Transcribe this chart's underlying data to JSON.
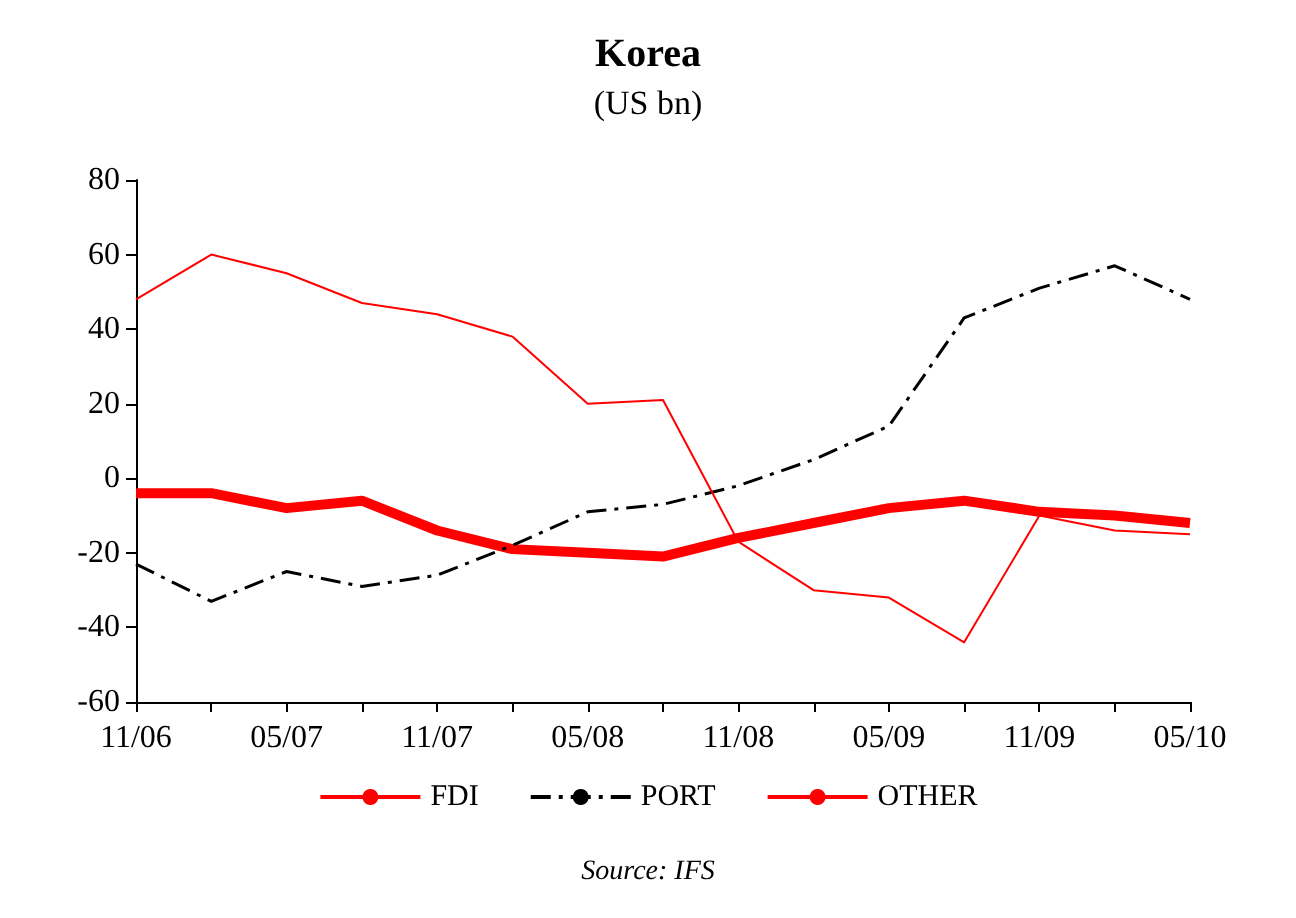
{
  "chart_data": {
    "type": "line",
    "title": "Korea",
    "subtitle": "(US bn)",
    "categories": [
      "11/06",
      null,
      "05/07",
      null,
      "11/07",
      null,
      "05/08",
      null,
      "11/08",
      null,
      "05/09",
      null,
      "11/09",
      null,
      "05/10"
    ],
    "series": [
      {
        "name": "FDI",
        "color": "#ff0000",
        "line_style": "solid",
        "values": [
          -4,
          -4,
          -8,
          -6,
          -14,
          -19,
          -20,
          -21,
          -16,
          -12,
          -8,
          -6,
          -9,
          -10,
          -12
        ]
      },
      {
        "name": "PORT",
        "color": "#000000",
        "line_style": "dashed",
        "values": [
          -23,
          -33,
          -25,
          -29,
          -26,
          -18,
          -9,
          -7,
          -2,
          5,
          14,
          43,
          51,
          57,
          48
        ]
      },
      {
        "name": "OTHER",
        "color": "#ff0000",
        "line_style": "solid",
        "values": [
          48,
          60,
          55,
          47,
          44,
          38,
          20,
          21,
          -17,
          -30,
          -32,
          -44,
          -10,
          -14,
          -15
        ]
      }
    ],
    "ylim": [
      -60,
      80
    ],
    "yticks": [
      -60,
      -40,
      -20,
      0,
      20,
      40,
      60,
      80
    ],
    "grid": false,
    "legend": "bottom",
    "marker": "none",
    "annotations": [
      "Source: IFS"
    ]
  }
}
